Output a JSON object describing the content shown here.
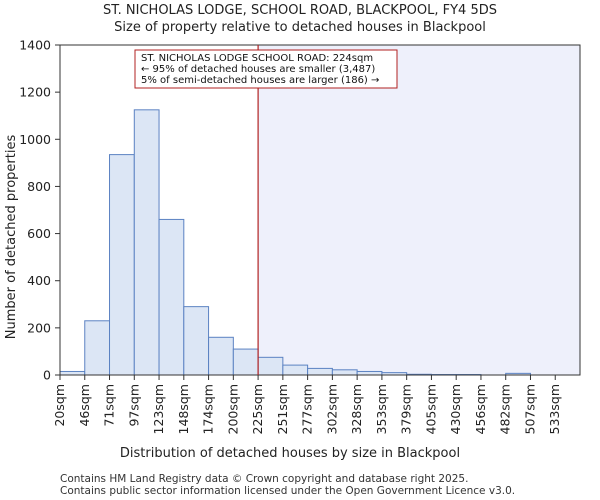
{
  "chart_data": {
    "type": "bar",
    "title": "ST. NICHOLAS LODGE, SCHOOL ROAD, BLACKPOOL, FY4 5DS",
    "subtitle": "Size of property relative to detached houses in Blackpool",
    "xlabel": "Distribution of detached houses by size in Blackpool",
    "ylabel": "Number of detached properties",
    "categories": [
      "20sqm",
      "46sqm",
      "71sqm",
      "97sqm",
      "123sqm",
      "148sqm",
      "174sqm",
      "200sqm",
      "225sqm",
      "251sqm",
      "277sqm",
      "302sqm",
      "328sqm",
      "353sqm",
      "379sqm",
      "405sqm",
      "430sqm",
      "456sqm",
      "482sqm",
      "507sqm",
      "533sqm"
    ],
    "values": [
      15,
      230,
      935,
      1125,
      660,
      290,
      160,
      110,
      75,
      42,
      28,
      22,
      15,
      10,
      3,
      2,
      2,
      0,
      7,
      0,
      0
    ],
    "ylim": [
      0,
      1400
    ],
    "yticks": [
      0,
      200,
      400,
      600,
      800,
      1000,
      1200,
      1400
    ],
    "bar_fill": "#dce6f5",
    "bar_stroke": "#5b82c2",
    "highlight_fill": "#eef0fb",
    "marker_color": "#b22222",
    "marker_index": 8,
    "annotation": {
      "line1": "ST. NICHOLAS LODGE SCHOOL ROAD: 224sqm",
      "line2": "← 95% of detached houses are smaller (3,487)",
      "line3": "5% of semi-detached houses are larger (186) →"
    }
  },
  "footer": {
    "line1": "Contains HM Land Registry data © Crown copyright and database right 2025.",
    "line2": "Contains public sector information licensed under the Open Government Licence v3.0."
  }
}
